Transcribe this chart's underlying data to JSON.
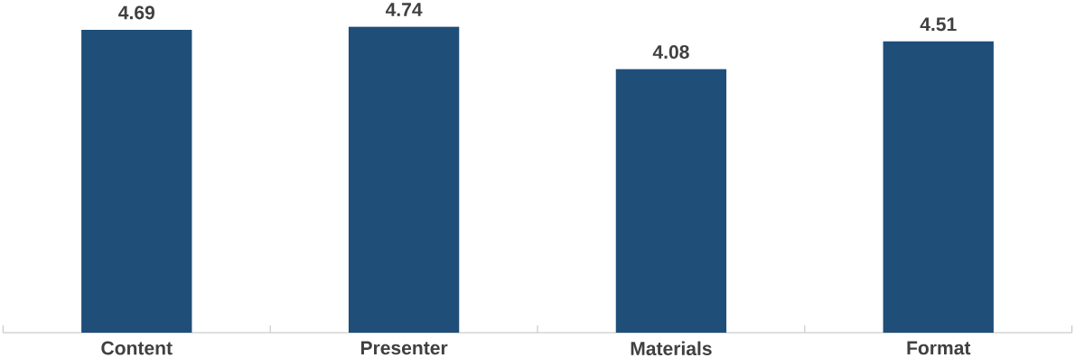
{
  "chart_data": {
    "type": "bar",
    "categories": [
      "Content",
      "Presenter",
      "Materials",
      "Format"
    ],
    "values": [
      4.69,
      4.74,
      4.08,
      4.51
    ],
    "color": "#1f4e79",
    "data_labels": true
  }
}
